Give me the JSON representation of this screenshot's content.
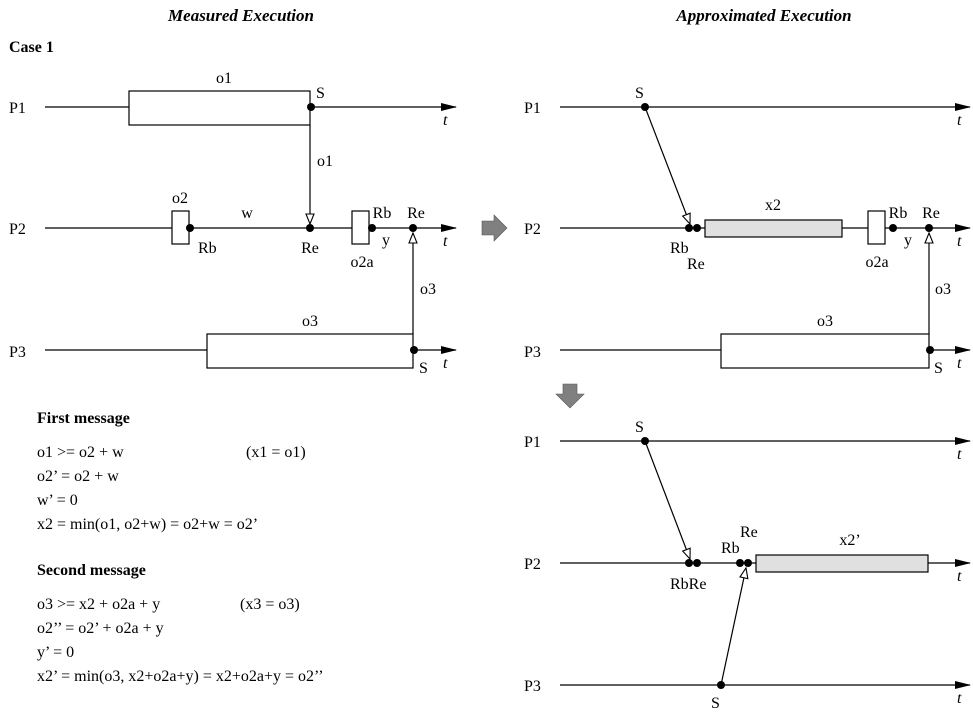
{
  "headings": {
    "measured": "Measured Execution",
    "approximated": "Approximated Execution",
    "case": "Case 1"
  },
  "axis": {
    "time": "t"
  },
  "processes": {
    "p1": "P1",
    "p2": "P2",
    "p3": "P3"
  },
  "events": {
    "send": "S",
    "recv_begin": "Rb",
    "recv_end": "Re",
    "rbre": "RbRe"
  },
  "labels": {
    "o1": "o1",
    "o2": "o2",
    "o2a": "o2a",
    "o3": "o3",
    "w": "w",
    "y": "y",
    "x2": "x2",
    "x2p": "x2’"
  },
  "first_message": {
    "title": "First message",
    "lines": [
      "o1 >= o2 + w",
      "o2’ = o2 + w",
      "w’ = 0",
      "x2 = min(o1, o2+w) = o2+w = o2’"
    ],
    "note": "(x1 = o1)"
  },
  "second_message": {
    "title": "Second message",
    "lines": [
      "o3 >= x2 + o2a + y",
      "o2’’ = o2’ + o2a + y",
      "y’ = 0",
      "x2’ = min(o3, x2+o2a+y) = x2+o2a+y = o2’’"
    ],
    "note": "(x3 = o3)"
  },
  "colors": {
    "stroke": "#000000",
    "gray_box": "#e0e0e0",
    "step_arrow": "#808080"
  }
}
